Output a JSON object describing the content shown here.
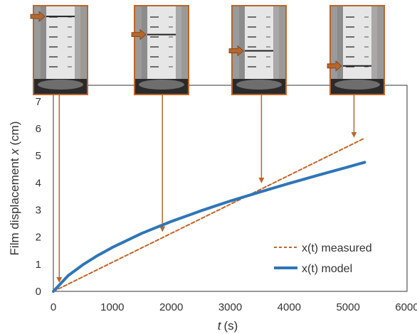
{
  "chart_data": {
    "type": "line",
    "xlabel_var": "t",
    "xlabel_unit": "(s)",
    "ylabel_text": "Film displacement ",
    "ylabel_var": "x",
    "ylabel_unit": " (cm)",
    "xlim": [
      0,
      6000
    ],
    "ylim": [
      0,
      7.6
    ],
    "x_ticks": [
      0,
      1000,
      2000,
      3000,
      4000,
      5000,
      6000
    ],
    "y_ticks": [
      0,
      1,
      2,
      3,
      4,
      5,
      6,
      7
    ],
    "grid": false,
    "legend_position": "bottom-right",
    "series": [
      {
        "name": "x(t) measured",
        "style": "dashed",
        "color": "#c0652b",
        "x": [
          0,
          5280
        ],
        "y": [
          0,
          5.65
        ]
      },
      {
        "name": "x(t) model",
        "style": "solid",
        "color": "#2e75b6",
        "x": [
          0,
          250,
          500,
          750,
          1000,
          1500,
          2000,
          2500,
          3000,
          3500,
          4000,
          4500,
          5000,
          5280
        ],
        "y": [
          0,
          0.58,
          0.98,
          1.32,
          1.62,
          2.14,
          2.58,
          2.97,
          3.33,
          3.66,
          3.98,
          4.29,
          4.59,
          4.76
        ]
      }
    ],
    "photo_times": [
      100,
      1850,
      3530,
      5100
    ],
    "photo_level": [
      0.06,
      0.36,
      0.63,
      0.88
    ],
    "colors": {
      "annotation": "#b8662b",
      "axis": "#333333"
    }
  }
}
